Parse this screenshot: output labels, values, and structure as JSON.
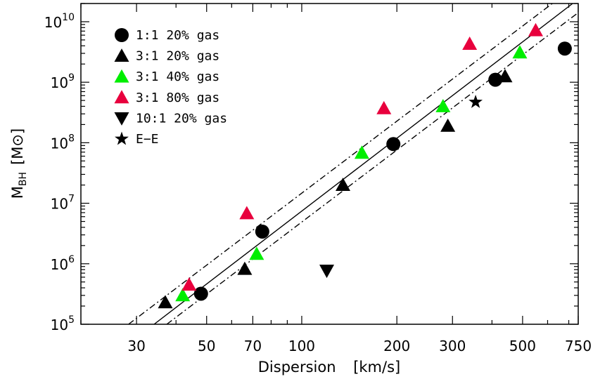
{
  "chart_data": {
    "type": "scatter",
    "xscale": "log",
    "yscale": "log",
    "xlim": [
      20,
      750
    ],
    "ylim": [
      100000,
      20000000000
    ],
    "xlabel": "Dispersion",
    "xunit": "[km/s]",
    "ylabel_main": "M",
    "ylabel_sub": "BH",
    "ylabel_unit": "[M⊙]",
    "xticks": [
      {
        "value": 30,
        "label": "30"
      },
      {
        "value": 50,
        "label": "50"
      },
      {
        "value": 70,
        "label": "70"
      },
      {
        "value": 100,
        "label": "100"
      },
      {
        "value": 200,
        "label": "200"
      },
      {
        "value": 300,
        "label": "300"
      },
      {
        "value": 500,
        "label": "500"
      },
      {
        "value": 750,
        "label": "750"
      }
    ],
    "xminor": [
      20,
      40,
      60,
      80,
      90,
      400,
      600,
      700
    ],
    "yticks": [
      {
        "value": 100000,
        "base": "10",
        "exp": "5"
      },
      {
        "value": 1000000,
        "base": "10",
        "exp": "6"
      },
      {
        "value": 10000000,
        "base": "10",
        "exp": "7"
      },
      {
        "value": 100000000,
        "base": "10",
        "exp": "8"
      },
      {
        "value": 1000000000,
        "base": "10",
        "exp": "9"
      },
      {
        "value": 10000000000,
        "base": "10",
        "exp": "10"
      }
    ],
    "series": [
      {
        "name": "1:1 20% gas",
        "marker": "circle",
        "color": "#000000",
        "points": [
          [
            48,
            320000
          ],
          [
            75,
            3400000
          ],
          [
            195,
            95000000
          ],
          [
            410,
            1100000000
          ],
          [
            680,
            3600000000
          ]
        ]
      },
      {
        "name": "3:1 20% gas",
        "marker": "triangle-up",
        "color": "#000000",
        "points": [
          [
            37,
            230000
          ],
          [
            66,
            820000
          ],
          [
            135,
            20000000
          ],
          [
            290,
            190000000
          ],
          [
            440,
            1250000000
          ]
        ]
      },
      {
        "name": "3:1 40% gas",
        "marker": "triangle-up",
        "color": "#00ee00",
        "points": [
          [
            42,
            300000
          ],
          [
            72,
            1450000
          ],
          [
            155,
            68000000
          ],
          [
            280,
            400000000
          ],
          [
            490,
            3100000000
          ]
        ]
      },
      {
        "name": "3:1 80% gas",
        "marker": "triangle-up",
        "color": "#e8003d",
        "points": [
          [
            44,
            450000
          ],
          [
            67,
            6800000
          ],
          [
            182,
            370000000
          ],
          [
            340,
            4300000000
          ],
          [
            550,
            7200000000
          ]
        ]
      },
      {
        "name": "10:1 20% gas",
        "marker": "triangle-down",
        "color": "#000000",
        "points": [
          [
            120,
            770000
          ]
        ]
      },
      {
        "name": "E−E",
        "marker": "star",
        "color": "#000000",
        "points": [
          [
            355,
            470000000
          ]
        ]
      }
    ],
    "fit_lines": [
      {
        "style": "solid",
        "points": [
          [
            34.1,
            100000
          ],
          [
            720,
            20000000000
          ]
        ]
      },
      {
        "style": "dashdot",
        "points": [
          [
            28.3,
            100000
          ],
          [
            621,
            20000000000
          ]
        ]
      },
      {
        "style": "dashdot",
        "points": [
          [
            37.4,
            100000
          ],
          [
            745,
            13750000000
          ]
        ]
      }
    ],
    "legend": {
      "position": "top-left"
    }
  }
}
